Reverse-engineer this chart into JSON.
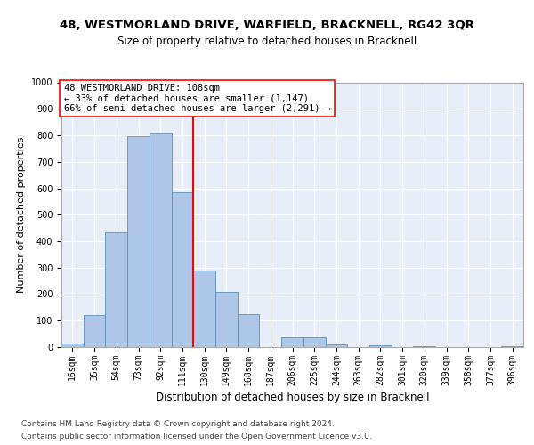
{
  "title1": "48, WESTMORLAND DRIVE, WARFIELD, BRACKNELL, RG42 3QR",
  "title2": "Size of property relative to detached houses in Bracknell",
  "xlabel": "Distribution of detached houses by size in Bracknell",
  "ylabel": "Number of detached properties",
  "footnote1": "Contains HM Land Registry data © Crown copyright and database right 2024.",
  "footnote2": "Contains public sector information licensed under the Open Government Licence v3.0.",
  "annotation_line1": "48 WESTMORLAND DRIVE: 108sqm",
  "annotation_line2": "← 33% of detached houses are smaller (1,147)",
  "annotation_line3": "66% of semi-detached houses are larger (2,291) →",
  "bin_labels": [
    "16sqm",
    "35sqm",
    "54sqm",
    "73sqm",
    "92sqm",
    "111sqm",
    "130sqm",
    "149sqm",
    "168sqm",
    "187sqm",
    "206sqm",
    "225sqm",
    "244sqm",
    "263sqm",
    "282sqm",
    "301sqm",
    "320sqm",
    "339sqm",
    "358sqm",
    "377sqm",
    "396sqm"
  ],
  "bar_heights": [
    15,
    120,
    435,
    795,
    810,
    585,
    290,
    210,
    125,
    0,
    38,
    38,
    10,
    0,
    8,
    0,
    5,
    0,
    0,
    0,
    5
  ],
  "bar_color": "#aec6e8",
  "bar_edge_color": "#5a8fc0",
  "vline_color": "red",
  "vline_pos": 5.5,
  "ylim": [
    0,
    1000
  ],
  "yticks": [
    0,
    100,
    200,
    300,
    400,
    500,
    600,
    700,
    800,
    900,
    1000
  ],
  "annotation_box_color": "red",
  "background_color": "#e8eef8",
  "grid_color": "#ffffff",
  "title1_fontsize": 9.5,
  "title2_fontsize": 8.5,
  "xlabel_fontsize": 8.5,
  "ylabel_fontsize": 8,
  "annotation_fontsize": 7.5,
  "tick_fontsize": 7,
  "footnote_fontsize": 6.5
}
